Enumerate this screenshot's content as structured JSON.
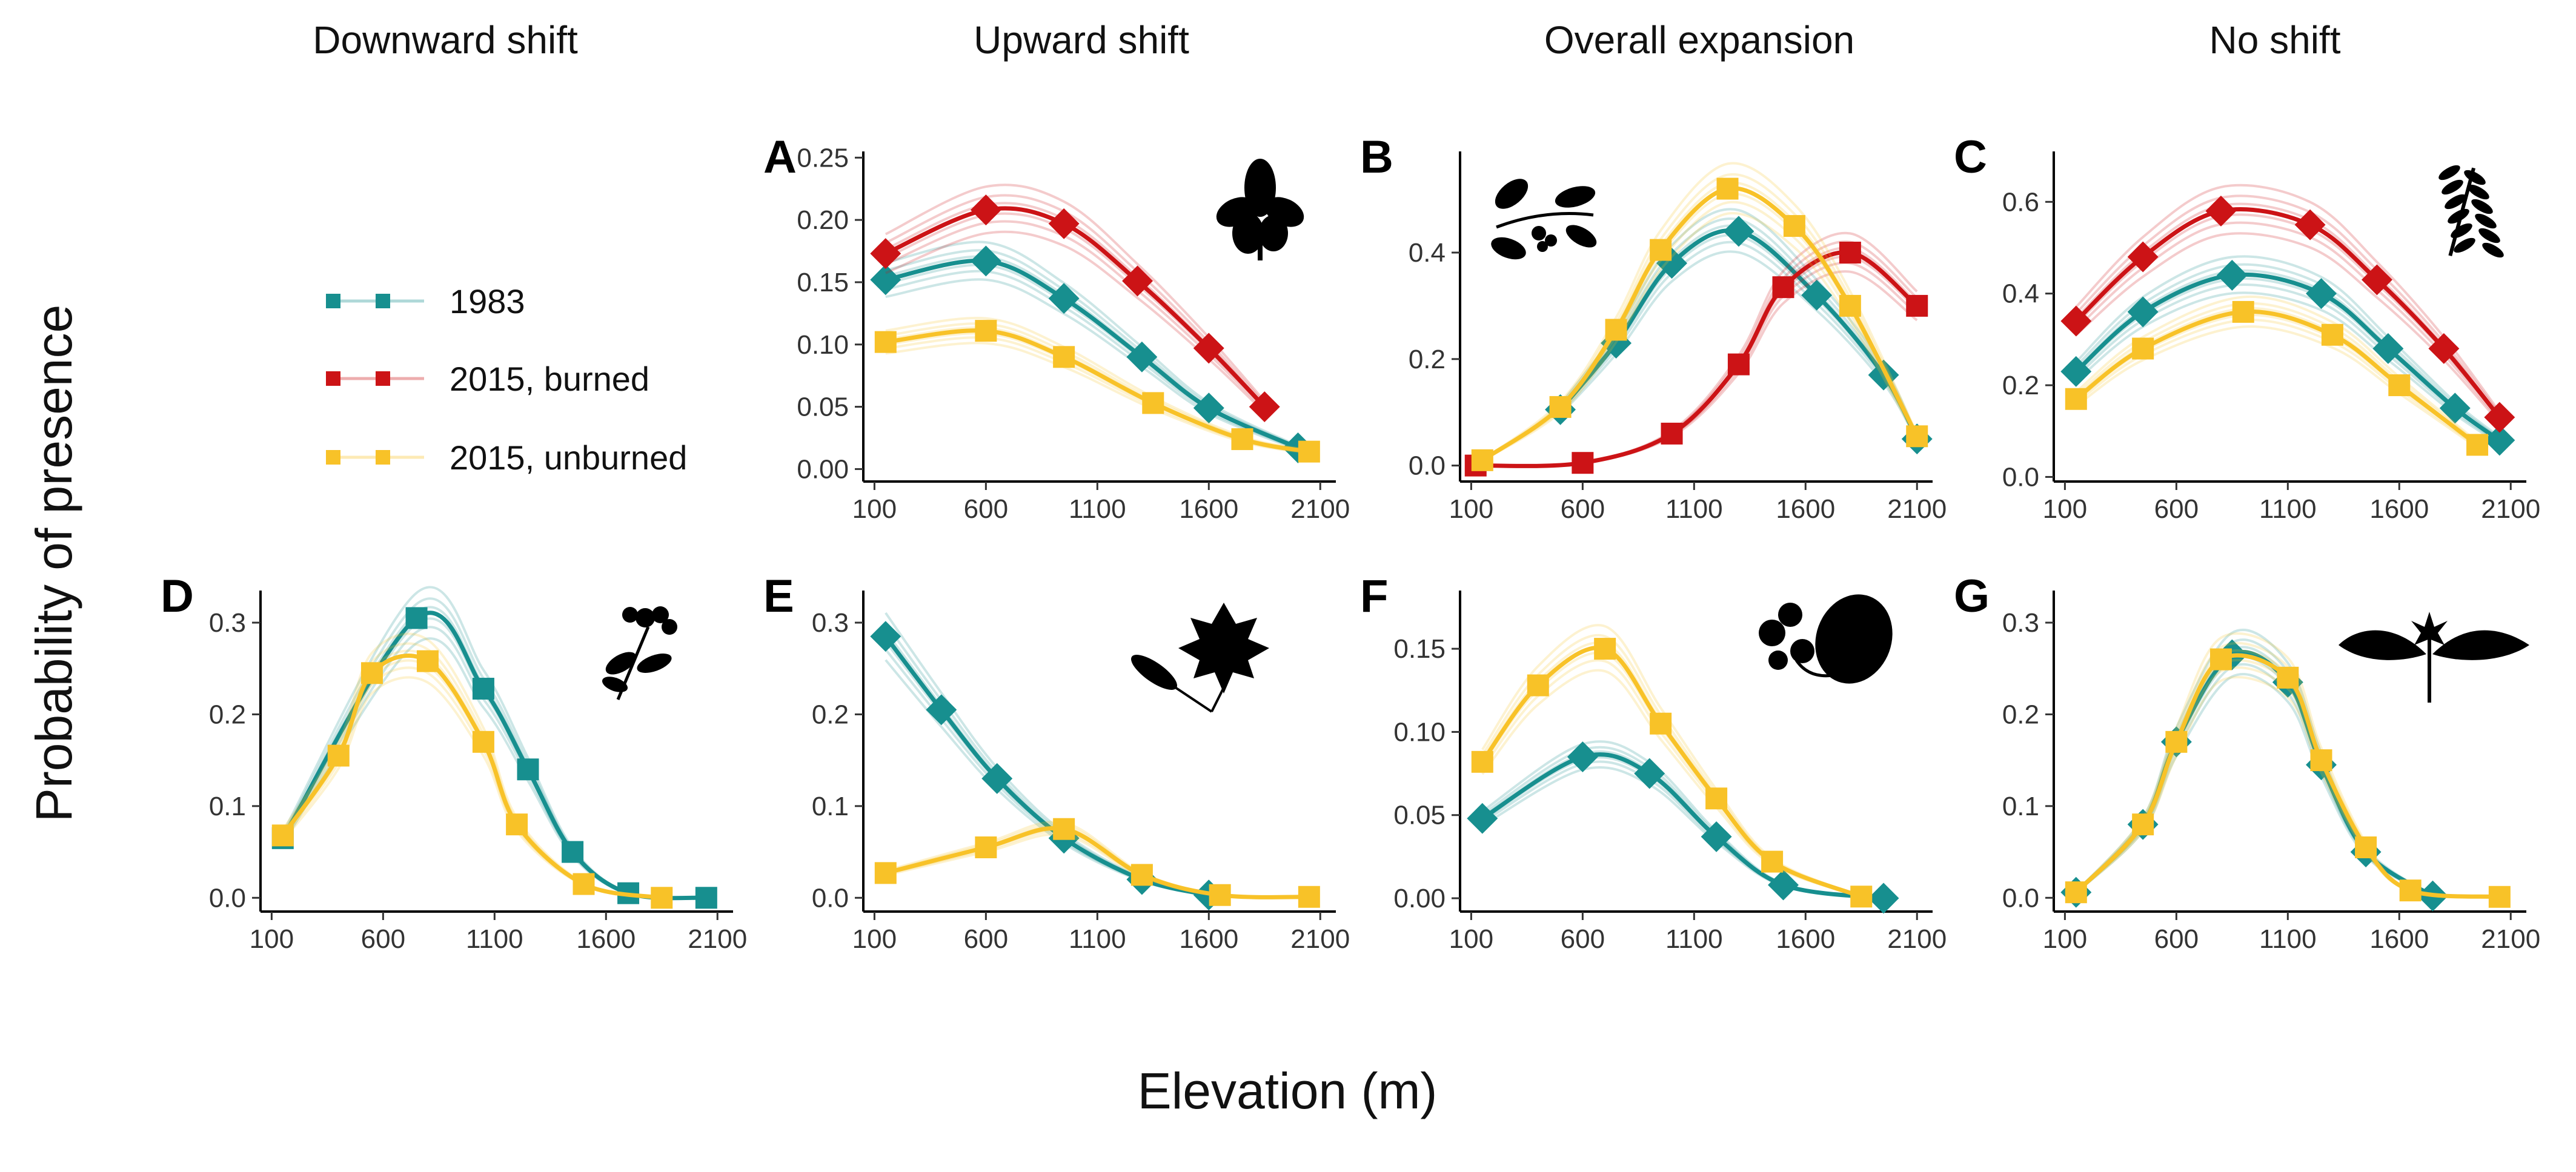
{
  "figure": {
    "column_titles": [
      "Downward shift",
      "Upward shift",
      "Overall expansion",
      "No shift"
    ],
    "y_axis_title": "Probability of presence",
    "x_axis_title": "Elevation (m)",
    "legend": [
      {
        "label": "1983",
        "color": "#178f8f"
      },
      {
        "label": "2015, burned",
        "color": "#cc1316"
      },
      {
        "label": "2015, unburned",
        "color": "#f8c228"
      }
    ]
  },
  "chart_data": [
    {
      "panel": "A",
      "type": "line",
      "column": "Upward shift",
      "x_ticks": [
        100,
        600,
        1100,
        1600,
        2100
      ],
      "xlim": [
        50,
        2170
      ],
      "y_ticks": [
        "0.00",
        "0.05",
        "0.10",
        "0.15",
        "0.20",
        "0.25"
      ],
      "ylim": [
        -0.01,
        0.255
      ],
      "icon": "leaf-silhouette-icon",
      "series": [
        {
          "name": "1983",
          "color": "#178f8f",
          "marker": "diamond",
          "x": [
            150,
            600,
            950,
            1300,
            1600,
            2000
          ],
          "y": [
            0.152,
            0.167,
            0.137,
            0.09,
            0.049,
            0.017
          ]
        },
        {
          "name": "2015, burned",
          "color": "#cc1316",
          "marker": "diamond",
          "x": [
            150,
            600,
            950,
            1280,
            1600,
            1850
          ],
          "y": [
            0.173,
            0.208,
            0.197,
            0.151,
            0.097,
            0.05
          ]
        },
        {
          "name": "2015, unburned",
          "color": "#f8c228",
          "marker": "square",
          "x": [
            150,
            600,
            950,
            1350,
            1750,
            2050
          ],
          "y": [
            0.102,
            0.111,
            0.09,
            0.053,
            0.024,
            0.014
          ]
        }
      ]
    },
    {
      "panel": "B",
      "type": "line",
      "column": "Overall expansion",
      "x_ticks": [
        100,
        600,
        1100,
        1600,
        2100
      ],
      "xlim": [
        50,
        2170
      ],
      "y_ticks": [
        "0.0",
        "0.2",
        "0.4"
      ],
      "ylim": [
        -0.03,
        0.59
      ],
      "icon": "berry-branch-silhouette-icon",
      "series": [
        {
          "name": "1983",
          "color": "#178f8f",
          "marker": "diamond",
          "x": [
            500,
            750,
            1000,
            1300,
            1650,
            1950,
            2100
          ],
          "y": [
            0.105,
            0.23,
            0.38,
            0.44,
            0.32,
            0.17,
            0.05
          ]
        },
        {
          "name": "2015, burned",
          "color": "#cc1316",
          "marker": "square",
          "x": [
            120,
            600,
            1000,
            1300,
            1500,
            1800,
            2100
          ],
          "y": [
            0.0,
            0.005,
            0.06,
            0.19,
            0.335,
            0.4,
            0.3
          ]
        },
        {
          "name": "2015, unburned",
          "color": "#f8c228",
          "marker": "square",
          "x": [
            150,
            500,
            750,
            950,
            1250,
            1550,
            1800,
            2100
          ],
          "y": [
            0.01,
            0.11,
            0.255,
            0.405,
            0.52,
            0.45,
            0.3,
            0.055
          ]
        }
      ]
    },
    {
      "panel": "C",
      "type": "line",
      "column": "No shift",
      "x_ticks": [
        100,
        600,
        1100,
        1600,
        2100
      ],
      "xlim": [
        50,
        2170
      ],
      "y_ticks": [
        "0.0",
        "0.2",
        "0.4",
        "0.6"
      ],
      "ylim": [
        -0.01,
        0.71
      ],
      "icon": "fern-silhouette-icon",
      "series": [
        {
          "name": "1983",
          "color": "#178f8f",
          "marker": "diamond",
          "x": [
            150,
            450,
            850,
            1250,
            1550,
            1850,
            2050
          ],
          "y": [
            0.23,
            0.36,
            0.44,
            0.4,
            0.28,
            0.15,
            0.08
          ]
        },
        {
          "name": "2015, burned",
          "color": "#cc1316",
          "marker": "diamond",
          "x": [
            150,
            450,
            800,
            1200,
            1500,
            1800,
            2050
          ],
          "y": [
            0.34,
            0.48,
            0.58,
            0.55,
            0.43,
            0.28,
            0.13
          ]
        },
        {
          "name": "2015, unburned",
          "color": "#f8c228",
          "marker": "square",
          "x": [
            150,
            450,
            900,
            1300,
            1600,
            1950
          ],
          "y": [
            0.17,
            0.28,
            0.36,
            0.31,
            0.2,
            0.07
          ]
        }
      ]
    },
    {
      "panel": "D",
      "type": "line",
      "column": "Downward shift",
      "x_ticks": [
        100,
        600,
        1100,
        1600,
        2100
      ],
      "xlim": [
        50,
        2170
      ],
      "y_ticks": [
        "0.0",
        "0.1",
        "0.2",
        "0.3"
      ],
      "ylim": [
        -0.015,
        0.335
      ],
      "icon": "herb-silhouette-icon",
      "series": [
        {
          "name": "1983",
          "color": "#178f8f",
          "marker": "square",
          "x": [
            150,
            750,
            1050,
            1250,
            1450,
            1700,
            2050
          ],
          "y": [
            0.065,
            0.305,
            0.228,
            0.14,
            0.05,
            0.005,
            0.0
          ]
        },
        {
          "name": "2015, unburned",
          "color": "#f8c228",
          "marker": "square",
          "x": [
            150,
            400,
            550,
            800,
            1050,
            1200,
            1500,
            1850
          ],
          "y": [
            0.068,
            0.155,
            0.245,
            0.258,
            0.17,
            0.08,
            0.015,
            0.0
          ]
        }
      ]
    },
    {
      "panel": "E",
      "type": "line",
      "column": "Upward shift",
      "x_ticks": [
        100,
        600,
        1100,
        1600,
        2100
      ],
      "xlim": [
        50,
        2170
      ],
      "y_ticks": [
        "0.0",
        "0.1",
        "0.2",
        "0.3"
      ],
      "ylim": [
        -0.015,
        0.335
      ],
      "icon": "maple-leaf-silhouette-icon",
      "series": [
        {
          "name": "1983",
          "color": "#178f8f",
          "marker": "diamond",
          "x": [
            150,
            400,
            650,
            950,
            1300,
            1600
          ],
          "y": [
            0.285,
            0.205,
            0.13,
            0.065,
            0.02,
            0.003
          ]
        },
        {
          "name": "2015, unburned",
          "color": "#f8c228",
          "marker": "square",
          "x": [
            150,
            600,
            950,
            1300,
            1650,
            2050
          ],
          "y": [
            0.027,
            0.055,
            0.075,
            0.025,
            0.003,
            0.001
          ]
        }
      ]
    },
    {
      "panel": "F",
      "type": "line",
      "column": "Overall expansion",
      "x_ticks": [
        100,
        600,
        1100,
        1600,
        2100
      ],
      "xlim": [
        50,
        2170
      ],
      "y_ticks": [
        "0.00",
        "0.05",
        "0.10",
        "0.15"
      ],
      "ylim": [
        -0.008,
        0.185
      ],
      "icon": "flower-leaf-silhouette-icon",
      "series": [
        {
          "name": "1983",
          "color": "#178f8f",
          "marker": "diamond",
          "x": [
            150,
            600,
            900,
            1200,
            1500,
            1950
          ],
          "y": [
            0.048,
            0.085,
            0.075,
            0.037,
            0.008,
            0.0
          ]
        },
        {
          "name": "2015, unburned",
          "color": "#f8c228",
          "marker": "square",
          "x": [
            150,
            400,
            700,
            950,
            1200,
            1450,
            1850
          ],
          "y": [
            0.082,
            0.128,
            0.15,
            0.105,
            0.06,
            0.022,
            0.001
          ]
        }
      ]
    },
    {
      "panel": "G",
      "type": "line",
      "column": "No shift",
      "x_ticks": [
        100,
        600,
        1100,
        1600,
        2100
      ],
      "xlim": [
        50,
        2170
      ],
      "y_ticks": [
        "0.0",
        "0.1",
        "0.2",
        "0.3"
      ],
      "ylim": [
        -0.015,
        0.335
      ],
      "icon": "lily-silhouette-icon",
      "series": [
        {
          "name": "1983",
          "color": "#178f8f",
          "marker": "diamond",
          "x": [
            150,
            450,
            600,
            850,
            1100,
            1250,
            1450,
            1750
          ],
          "y": [
            0.006,
            0.08,
            0.17,
            0.265,
            0.235,
            0.145,
            0.05,
            0.002
          ]
        },
        {
          "name": "2015, unburned",
          "color": "#f8c228",
          "marker": "square",
          "x": [
            150,
            450,
            600,
            800,
            1100,
            1250,
            1450,
            1650,
            2050
          ],
          "y": [
            0.006,
            0.08,
            0.17,
            0.26,
            0.24,
            0.15,
            0.055,
            0.008,
            0.001
          ]
        }
      ]
    }
  ]
}
